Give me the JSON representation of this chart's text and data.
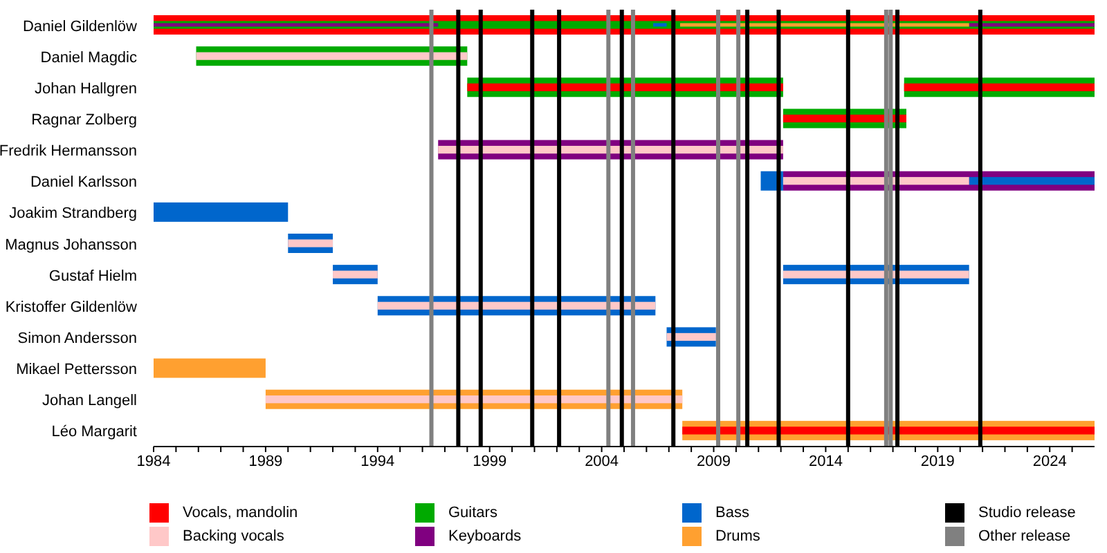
{
  "chart_data": {
    "type": "bar",
    "orientation": "horizontal",
    "legend": "bottom",
    "categories": [
      "Daniel Gildenlöw",
      "Daniel Magdic",
      "Johan Hallgren",
      "Ragnar Zolberg",
      "Fredrik Hermansson",
      "Daniel Karlsson",
      "Joakim Strandberg",
      "Magnus Johansson",
      "Gustaf Hielm",
      "Kristoffer Gildenlöw",
      "Simon Andersson",
      "Mikael Pettersson",
      "Johan Langell",
      "Léo Margarit"
    ],
    "xlim": [
      1984,
      2026
    ],
    "xticks": [
      1984,
      {
        "value": 1985,
        "label": null
      },
      {
        "value": 1986,
        "label": null
      },
      {
        "value": 1987,
        "label": null
      },
      {
        "value": 1988,
        "label": null
      },
      1989,
      {
        "value": 1990,
        "label": null
      },
      {
        "value": 1991,
        "label": null
      },
      {
        "value": 1992,
        "label": null
      },
      {
        "value": 1993,
        "label": null
      },
      1994,
      {
        "value": 1995,
        "label": null
      },
      {
        "value": 1996,
        "label": null
      },
      {
        "value": 1997,
        "label": null
      },
      {
        "value": 1998,
        "label": null
      },
      1999,
      {
        "value": 2000,
        "label": null
      },
      {
        "value": 2001,
        "label": null
      },
      {
        "value": 2002,
        "label": null
      },
      {
        "value": 2003,
        "label": null
      },
      2004,
      {
        "value": 2005,
        "label": null
      },
      {
        "value": 2006,
        "label": null
      },
      {
        "value": 2007,
        "label": null
      },
      {
        "value": 2008,
        "label": null
      },
      2009,
      {
        "value": 2010,
        "label": null
      },
      {
        "value": 2011,
        "label": null
      },
      {
        "value": 2012,
        "label": null
      },
      {
        "value": 2013,
        "label": null
      },
      2014,
      {
        "value": 2015,
        "label": null
      },
      {
        "value": 2016,
        "label": null
      },
      {
        "value": 2017,
        "label": null
      },
      {
        "value": 2018,
        "label": null
      },
      2019,
      {
        "value": 2020,
        "label": null
      },
      {
        "value": 2021,
        "label": null
      },
      {
        "value": 2022,
        "label": null
      },
      {
        "value": 2023,
        "label": null
      },
      2024,
      {
        "value": 2025,
        "label": null
      }
    ],
    "series": [
      {
        "name": "Vocals, mandolin",
        "color": "#ff0000",
        "base": [
          null,
          null,
          1998.0,
          2012.1,
          null,
          null,
          null,
          null,
          null,
          null,
          null,
          null,
          null,
          2007.6
        ],
        "values": [
          null,
          null,
          14.1,
          5.5,
          null,
          null,
          null,
          null,
          null,
          null,
          null,
          null,
          null,
          18.4
        ]
      },
      {
        "name": "Backing vocals",
        "color": "#ffc8c8",
        "base": [
          null,
          1985.9,
          null,
          null,
          1996.7,
          2012.1,
          null,
          1990.0,
          1992.0,
          1994.0,
          2006.9,
          null,
          1989.0,
          null
        ],
        "values": [
          null,
          12.1,
          null,
          null,
          15.4,
          8.3,
          null,
          2.0,
          2.0,
          12.4,
          2.2,
          null,
          18.6,
          null
        ]
      },
      {
        "name": null,
        "color": "#ffc8c8",
        "base": [
          null,
          null,
          null,
          null,
          null,
          null,
          null,
          null,
          2012.1,
          null,
          null,
          null,
          null,
          null
        ],
        "values": [
          null,
          null,
          null,
          null,
          null,
          null,
          null,
          null,
          8.3,
          null,
          null,
          null,
          null,
          null
        ]
      },
      {
        "name": null,
        "color": "#ff0000",
        "base": [
          null,
          null,
          2017.5,
          null,
          null,
          null,
          null,
          null,
          null,
          null,
          null,
          null,
          null,
          null
        ],
        "values": [
          null,
          null,
          8.5,
          null,
          null,
          null,
          null,
          null,
          null,
          null,
          null,
          null,
          null,
          null
        ]
      },
      {
        "name": "Guitars",
        "color": "#00aa00",
        "base": [
          null,
          1985.9,
          1998.0,
          2012.1,
          null,
          null,
          null,
          null,
          null,
          null,
          null,
          null,
          null,
          null
        ],
        "values": [
          null,
          12.1,
          14.1,
          5.5,
          null,
          null,
          null,
          null,
          null,
          null,
          null,
          null,
          null,
          null
        ]
      },
      {
        "name": "Keyboards",
        "color": "#800080",
        "base": [
          1984,
          null,
          null,
          null,
          1996.7,
          null,
          null,
          null,
          null,
          null,
          null,
          null,
          null,
          null
        ],
        "values": [
          12.7,
          null,
          null,
          null,
          15.4,
          null,
          null,
          null,
          null,
          null,
          null,
          null,
          null,
          null
        ]
      },
      {
        "name": "Bass",
        "color": "#0066cc",
        "base": [
          null,
          null,
          null,
          null,
          null,
          2020.4,
          1984,
          1990.0,
          1992.0,
          1994.0,
          2006.9,
          null,
          null,
          null
        ],
        "values": [
          null,
          null,
          null,
          null,
          null,
          5.6,
          6.0,
          2.0,
          2.0,
          12.4,
          2.2,
          null,
          null,
          null
        ]
      },
      {
        "name": null,
        "color": "#0066cc",
        "base": [
          2006.3,
          null,
          null,
          null,
          null,
          2011.1,
          null,
          null,
          2012.1,
          null,
          null,
          null,
          null,
          null
        ],
        "values": [
          0.6,
          null,
          null,
          null,
          null,
          1.0,
          null,
          null,
          8.3,
          null,
          null,
          null,
          null,
          null
        ]
      },
      {
        "name": "Drums",
        "color": "#ffa030",
        "base": [
          2007.5,
          null,
          null,
          null,
          null,
          null,
          null,
          null,
          null,
          null,
          null,
          1984,
          1989.0,
          2007.6
        ],
        "values": [
          12.9,
          null,
          null,
          null,
          null,
          null,
          null,
          null,
          null,
          null,
          null,
          5.0,
          18.6,
          18.4
        ]
      },
      {
        "name": null,
        "color": "#800080",
        "base": [
          2020.4,
          null,
          null,
          null,
          null,
          2012.1,
          null,
          null,
          null,
          null,
          null,
          null,
          null,
          null
        ],
        "values": [
          5.6,
          null,
          null,
          null,
          null,
          13.9,
          null,
          null,
          null,
          null,
          null,
          null,
          null,
          null
        ]
      },
      {
        "name": null,
        "color": "#00aa00",
        "base": [
          1984,
          null,
          2017.5,
          null,
          null,
          null,
          null,
          null,
          null,
          null,
          null,
          null,
          null,
          null
        ],
        "values": [
          42,
          null,
          8.5,
          null,
          null,
          null,
          null,
          null,
          null,
          null,
          null,
          null,
          null,
          null
        ]
      },
      {
        "name": null,
        "color": "#ff0000",
        "base": [
          1984,
          null,
          null,
          null,
          null,
          null,
          null,
          null,
          null,
          null,
          null,
          null,
          null,
          null
        ],
        "values": [
          42,
          null,
          null,
          null,
          null,
          null,
          null,
          null,
          null,
          null,
          null,
          null,
          null,
          null
        ]
      }
    ],
    "ref_lines": [
      {
        "axis": "x",
        "value": 1997.6,
        "label": "Studio release",
        "color": "#000000"
      },
      {
        "axis": "x",
        "value": 1996.4,
        "label": "Other release",
        "color": "#808080"
      },
      {
        "axis": "x",
        "value": 1998.6,
        "color": "#000000"
      },
      {
        "axis": "x",
        "value": 2000.9,
        "color": "#000000"
      },
      {
        "axis": "x",
        "value": 2002.1,
        "color": "#000000"
      },
      {
        "axis": "x",
        "value": 2004.3,
        "color": "#808080"
      },
      {
        "axis": "x",
        "value": 2004.9,
        "color": "#000000"
      },
      {
        "axis": "x",
        "value": 2005.4,
        "color": "#808080"
      },
      {
        "axis": "x",
        "value": 2007.2,
        "color": "#000000"
      },
      {
        "axis": "x",
        "value": 2009.2,
        "color": "#808080"
      },
      {
        "axis": "x",
        "value": 2010.1,
        "color": "#808080"
      },
      {
        "axis": "x",
        "value": 2010.5,
        "color": "#000000"
      },
      {
        "axis": "x",
        "value": 2011.9,
        "color": "#000000"
      },
      {
        "axis": "x",
        "value": 2015.0,
        "color": "#000000"
      },
      {
        "axis": "x",
        "value": 2016.7,
        "color": "#808080"
      },
      {
        "axis": "x",
        "value": 2016.9,
        "color": "#808080"
      },
      {
        "axis": "x",
        "value": 2017.2,
        "color": "#000000"
      },
      {
        "axis": "x",
        "value": 2020.9,
        "color": "#000000"
      }
    ]
  }
}
